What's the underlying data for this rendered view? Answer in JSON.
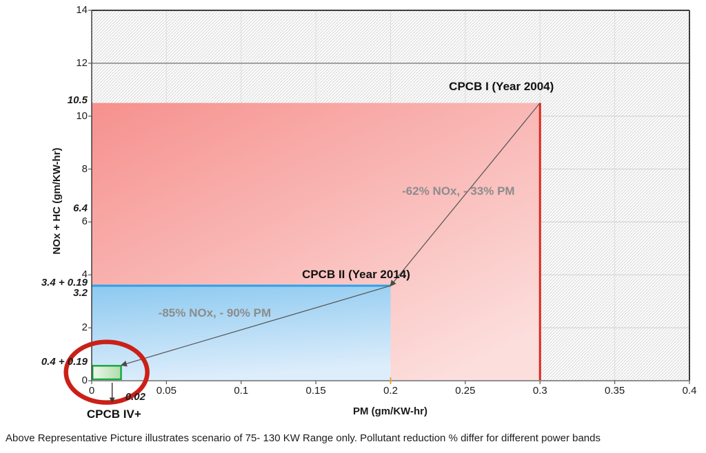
{
  "caption": "Above Representative Picture illustrates scenario of 75- 130 KW Range only. Pollutant reduction % differ for different power bands",
  "chart_data": {
    "type": "area",
    "title": "",
    "xlabel": "PM (gm/KW-hr)",
    "ylabel": "NOx + HC (gm/KW-hr)",
    "xlim": [
      0,
      0.4
    ],
    "ylim": [
      0,
      14
    ],
    "grid": true,
    "x_ticks": [
      {
        "v": 0,
        "label": "0"
      },
      {
        "v": 0.05,
        "label": "0.05"
      },
      {
        "v": 0.1,
        "label": "0.1"
      },
      {
        "v": 0.15,
        "label": "0.15"
      },
      {
        "v": 0.2,
        "label": "0.2"
      },
      {
        "v": 0.25,
        "label": "0.25"
      },
      {
        "v": 0.3,
        "label": "0.3"
      },
      {
        "v": 0.35,
        "label": "0.35"
      },
      {
        "v": 0.4,
        "label": "0.4"
      }
    ],
    "y_ticks": [
      {
        "v": 0,
        "label": "0"
      },
      {
        "v": 2,
        "label": "2"
      },
      {
        "v": 4,
        "label": "4"
      },
      {
        "v": 6,
        "label": "6"
      },
      {
        "v": 8,
        "label": "8"
      },
      {
        "v": 10,
        "label": "10"
      },
      {
        "v": 12,
        "label": "12"
      },
      {
        "v": 14,
        "label": "14"
      }
    ],
    "x_special_ticks": [
      {
        "v": 0.02,
        "label": "0.02"
      }
    ],
    "y_special_ticks": [
      {
        "v": 10.5,
        "label": "10.5"
      },
      {
        "v": 6.4,
        "label": "6.4"
      },
      {
        "v": 3.59,
        "label": "3.4 + 0.19"
      },
      {
        "v": 3.2,
        "label": "3.2"
      },
      {
        "v": 0.59,
        "label": "0.4 + 0.19"
      }
    ],
    "regions": [
      {
        "id": "cpcb1",
        "label": "CPCB I (Year 2004)",
        "pm_limit": 0.3,
        "noxhc_limit": 10.5,
        "fill_from": "#f6918e",
        "fill_to": "#fcdfdd",
        "edge_color": "#e1251b",
        "label_below": false,
        "label_offset": [
          -56,
          -24
        ]
      },
      {
        "id": "cpcb2",
        "label": "CPCB II (Year 2014)",
        "pm_limit": 0.2,
        "noxhc_limit": 3.59,
        "fill_from": "#8cc9f0",
        "fill_to": "#dcedfb",
        "edge_color": "#2da0e8",
        "label_below": false,
        "label_offset": [
          -50,
          -16
        ]
      },
      {
        "id": "cpcb4plus",
        "label": "CPCB IV+",
        "pm_limit": 0.02,
        "noxhc_limit": 0.59,
        "fill_from": "#eef7eb",
        "fill_to": "#aedeaa",
        "edge_color": "#17a840",
        "label_below": true,
        "label_offset": [
          -11,
          49
        ]
      }
    ],
    "arrows": [
      {
        "from_pm": 0.3,
        "from_noxhc": 10.5,
        "to_pm": 0.2,
        "to_noxhc": 3.59,
        "label": "-62% NOx, - 33% PM",
        "label_offset": [
          -10,
          -4
        ]
      },
      {
        "from_pm": 0.2,
        "from_noxhc": 3.59,
        "to_pm": 0.02,
        "to_noxhc": 0.59,
        "label": "-85% NOx, - 90% PM",
        "label_offset": [
          -60,
          -18
        ]
      }
    ],
    "highlight": {
      "shape": "ellipse",
      "target": "cpcb4plus",
      "color": "#cb2017"
    },
    "accent_tick": {
      "v": 0.2,
      "color": "#eda43b"
    }
  },
  "colors": {
    "arrow": "#5a5a5a",
    "arrowhead": "#4a4a4a",
    "annotation_text": "#8c8c8c",
    "grid_minor_v": "#dcdcdc",
    "grid_minor_h": "#cfcfcf",
    "grid_major": "#7a7a7a",
    "axis_dark": "#3c3c3c",
    "axis_bottom": "#8f8f8f",
    "hatch": "#d8d8d8",
    "tick": "#555555"
  }
}
